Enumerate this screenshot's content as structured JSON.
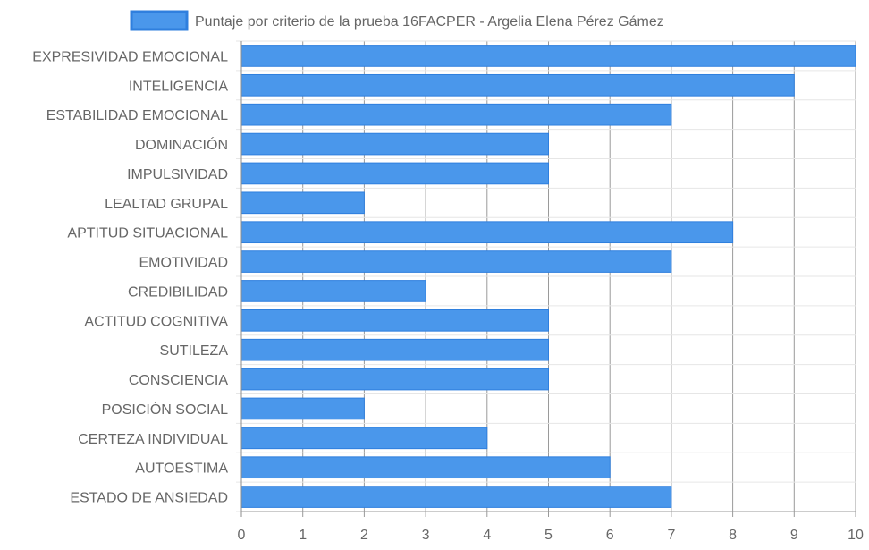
{
  "chart_data": {
    "type": "bar",
    "orientation": "horizontal",
    "categories": [
      "EXPRESIVIDAD EMOCIONAL",
      "INTELIGENCIA",
      "ESTABILIDAD EMOCIONAL",
      "DOMINACIÓN",
      "IMPULSIVIDAD",
      "LEALTAD GRUPAL",
      "APTITUD SITUACIONAL",
      "EMOTIVIDAD",
      "CREDIBILIDAD",
      "ACTITUD COGNITIVA",
      "SUTILEZA",
      "CONSCIENCIA",
      "POSICIÓN SOCIAL",
      "CERTEZA INDIVIDUAL",
      "AUTOESTIMA",
      "ESTADO DE ANSIEDAD"
    ],
    "series": [
      {
        "name": "Puntaje por criterio de la prueba 16FACPER - Argelia Elena Pérez Gámez",
        "values": [
          10,
          9,
          7,
          5,
          5,
          2,
          8,
          7,
          3,
          5,
          5,
          5,
          2,
          4,
          6,
          7
        ],
        "color": "#4a97eb",
        "border_color": "#2f7fde"
      }
    ],
    "xlim": [
      0,
      10
    ],
    "x_ticks": [
      "0",
      "1",
      "2",
      "3",
      "4",
      "5",
      "6",
      "7",
      "8",
      "9",
      "10"
    ],
    "grid": true,
    "legend_position": "top"
  }
}
